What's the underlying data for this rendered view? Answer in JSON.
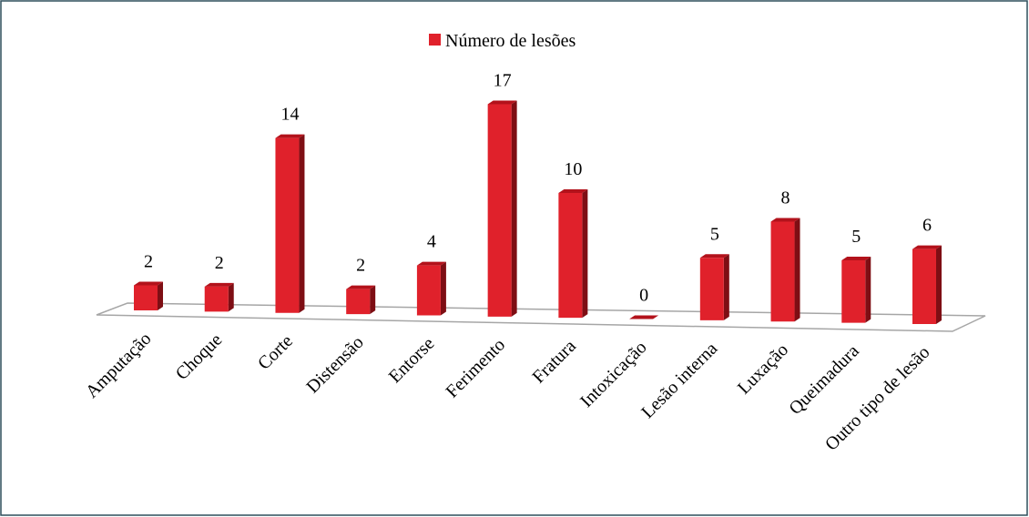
{
  "chart_data": {
    "type": "bar3d",
    "legend": "Número de lesões",
    "categories": [
      "Amputação",
      "Choque",
      "Corte",
      "Distensão",
      "Entorse",
      "Ferimento",
      "Fratura",
      "Intoxicação",
      "Lesão interna",
      "Luxação",
      "Queimadura",
      "Outro tipo de lesão"
    ],
    "values": [
      2,
      2,
      14,
      2,
      4,
      17,
      10,
      0,
      5,
      8,
      5,
      6
    ],
    "color": "#e0212b",
    "ylim": [
      0,
      18
    ],
    "legend_position": "top",
    "grid": false
  }
}
